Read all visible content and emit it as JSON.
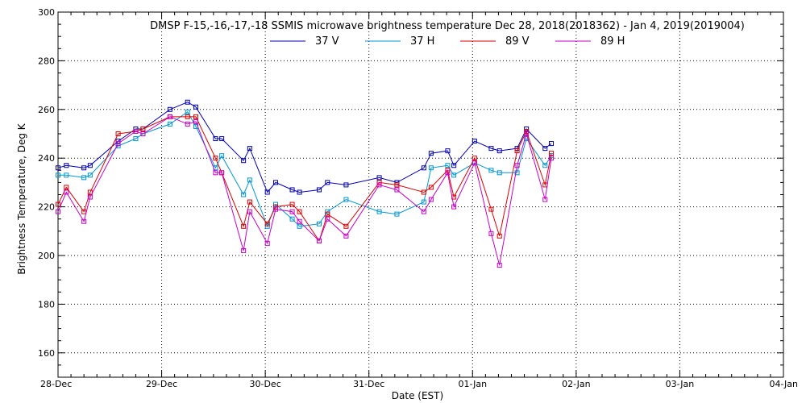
{
  "chart_data": {
    "type": "line",
    "title": "DMSP F-15,-16,-17,-18 SSMIS microwave brightness temperature Dec 28, 2018(2018362) - Jan  4, 2019(2019004)",
    "xlabel": "Date (EST)",
    "ylabel": "Brightness Temperature, Deg K",
    "xlim": [
      0,
      7
    ],
    "ylim": [
      150,
      300
    ],
    "yticks": [
      160,
      180,
      200,
      220,
      240,
      260,
      280,
      300
    ],
    "xtick_labels": [
      "28-Dec",
      "29-Dec",
      "30-Dec",
      "31-Dec",
      "01-Jan",
      "02-Jan",
      "03-Jan",
      "04-Jan"
    ],
    "grid": true,
    "legend_position": "top-center",
    "series": [
      {
        "name": "37 V",
        "color": "#0000b4",
        "points": [
          [
            0.0,
            236
          ],
          [
            0.08,
            237
          ],
          [
            0.25,
            236
          ],
          [
            0.31,
            237
          ],
          [
            0.58,
            247
          ],
          [
            0.75,
            252
          ],
          [
            0.82,
            252
          ],
          [
            1.08,
            260
          ],
          [
            1.25,
            263
          ],
          [
            1.33,
            261
          ],
          [
            1.52,
            248
          ],
          [
            1.58,
            248
          ],
          [
            1.79,
            239
          ],
          [
            1.85,
            244
          ],
          [
            2.02,
            226
          ],
          [
            2.1,
            230
          ],
          [
            2.26,
            227
          ],
          [
            2.33,
            226
          ],
          [
            2.52,
            227
          ],
          [
            2.6,
            230
          ],
          [
            2.78,
            229
          ],
          [
            3.1,
            232
          ],
          [
            3.27,
            230
          ],
          [
            3.53,
            236
          ],
          [
            3.6,
            242
          ],
          [
            3.76,
            243
          ],
          [
            3.82,
            237
          ],
          [
            4.02,
            247
          ],
          [
            4.18,
            244
          ],
          [
            4.26,
            243
          ],
          [
            4.43,
            244
          ],
          [
            4.52,
            252
          ],
          [
            4.7,
            244
          ],
          [
            4.76,
            246
          ]
        ]
      },
      {
        "name": "37 H",
        "color": "#0096d2",
        "points": [
          [
            0.0,
            233
          ],
          [
            0.08,
            233
          ],
          [
            0.25,
            232
          ],
          [
            0.31,
            233
          ],
          [
            0.58,
            245
          ],
          [
            0.75,
            248
          ],
          [
            0.82,
            250
          ],
          [
            1.08,
            254
          ],
          [
            1.25,
            259
          ],
          [
            1.33,
            253
          ],
          [
            1.52,
            236
          ],
          [
            1.58,
            241
          ],
          [
            1.79,
            225
          ],
          [
            1.85,
            231
          ],
          [
            2.02,
            212
          ],
          [
            2.1,
            221
          ],
          [
            2.26,
            215
          ],
          [
            2.33,
            212
          ],
          [
            2.52,
            213
          ],
          [
            2.6,
            218
          ],
          [
            2.78,
            223
          ],
          [
            3.1,
            218
          ],
          [
            3.27,
            217
          ],
          [
            3.53,
            222
          ],
          [
            3.6,
            236
          ],
          [
            3.76,
            237
          ],
          [
            3.82,
            233
          ],
          [
            4.02,
            238
          ],
          [
            4.18,
            235
          ],
          [
            4.26,
            234
          ],
          [
            4.43,
            234
          ],
          [
            4.52,
            248
          ],
          [
            4.7,
            237
          ],
          [
            4.76,
            241
          ]
        ]
      },
      {
        "name": "89 V",
        "color": "#dc0000",
        "points": [
          [
            0.0,
            221
          ],
          [
            0.08,
            228
          ],
          [
            0.25,
            218
          ],
          [
            0.31,
            226
          ],
          [
            0.58,
            250
          ],
          [
            0.75,
            251
          ],
          [
            0.82,
            252
          ],
          [
            1.08,
            257
          ],
          [
            1.25,
            257
          ],
          [
            1.33,
            257
          ],
          [
            1.52,
            240
          ],
          [
            1.58,
            234
          ],
          [
            1.79,
            212
          ],
          [
            1.85,
            222
          ],
          [
            2.02,
            213
          ],
          [
            2.1,
            220
          ],
          [
            2.26,
            221
          ],
          [
            2.33,
            218
          ],
          [
            2.52,
            206
          ],
          [
            2.6,
            217
          ],
          [
            2.78,
            212
          ],
          [
            3.1,
            230
          ],
          [
            3.27,
            229
          ],
          [
            3.53,
            226
          ],
          [
            3.6,
            228
          ],
          [
            3.76,
            235
          ],
          [
            3.82,
            224
          ],
          [
            4.02,
            240
          ],
          [
            4.18,
            219
          ],
          [
            4.26,
            208
          ],
          [
            4.43,
            243
          ],
          [
            4.52,
            251
          ],
          [
            4.7,
            229
          ],
          [
            4.76,
            242
          ]
        ]
      },
      {
        "name": "89 H",
        "color": "#c800c8",
        "points": [
          [
            0.0,
            218
          ],
          [
            0.08,
            226
          ],
          [
            0.25,
            214
          ],
          [
            0.31,
            224
          ],
          [
            0.58,
            246
          ],
          [
            0.75,
            251
          ],
          [
            0.82,
            250
          ],
          [
            1.08,
            257
          ],
          [
            1.25,
            254
          ],
          [
            1.33,
            255
          ],
          [
            1.52,
            234
          ],
          [
            1.58,
            234
          ],
          [
            1.79,
            202
          ],
          [
            1.85,
            218
          ],
          [
            2.02,
            205
          ],
          [
            2.1,
            219
          ],
          [
            2.26,
            218
          ],
          [
            2.33,
            214
          ],
          [
            2.52,
            206
          ],
          [
            2.6,
            215
          ],
          [
            2.78,
            208
          ],
          [
            3.1,
            229
          ],
          [
            3.27,
            227
          ],
          [
            3.53,
            218
          ],
          [
            3.6,
            223
          ],
          [
            3.76,
            234
          ],
          [
            3.82,
            220
          ],
          [
            4.02,
            238
          ],
          [
            4.18,
            209
          ],
          [
            4.26,
            196
          ],
          [
            4.43,
            237
          ],
          [
            4.52,
            250
          ],
          [
            4.7,
            223
          ],
          [
            4.76,
            240
          ]
        ]
      }
    ]
  }
}
